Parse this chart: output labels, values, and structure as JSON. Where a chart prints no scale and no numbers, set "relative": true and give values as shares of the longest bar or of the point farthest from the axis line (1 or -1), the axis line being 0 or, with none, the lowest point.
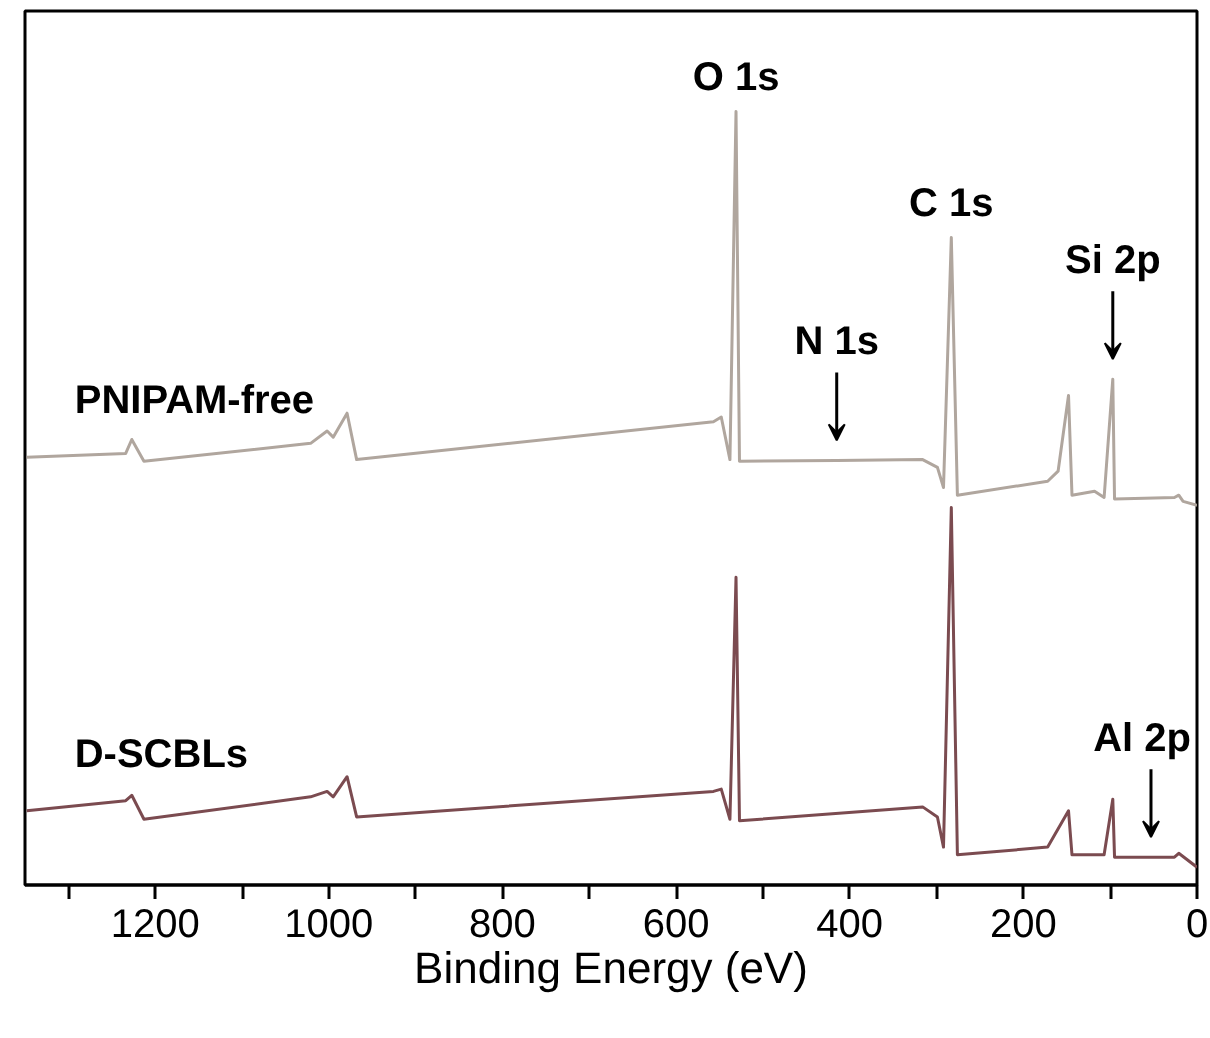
{
  "chart_data": {
    "type": "line",
    "relative": true,
    "xlabel": "Binding Energy (eV)",
    "xlim": [
      1350,
      0
    ],
    "xticks": [
      {
        "value": 1300,
        "label": null
      },
      1200,
      {
        "value": 1100,
        "label": null
      },
      1000,
      {
        "value": 900,
        "label": null
      },
      800,
      {
        "value": 700,
        "label": null
      },
      600,
      {
        "value": 500,
        "label": null
      },
      400,
      {
        "value": 300,
        "label": null
      },
      200,
      {
        "value": 100,
        "label": null
      },
      0
    ],
    "grid": false,
    "series": [
      {
        "name": "PNIPAM-free",
        "color": "#b0a69e",
        "x": [
          1348,
          1234,
          1227,
          1213,
          1021,
          1002,
          995,
          979,
          968,
          557,
          548,
          538,
          531,
          527,
          415,
          316,
          299,
          292,
          283,
          276,
          172,
          160,
          148,
          144,
          118,
          107,
          97,
          95,
          26,
          21,
          16,
          0
        ],
        "values": [
          0.553,
          0.558,
          0.576,
          0.548,
          0.571,
          0.587,
          0.579,
          0.61,
          0.55,
          0.599,
          0.605,
          0.55,
          1.0,
          0.548,
          0.549,
          0.55,
          0.54,
          0.514,
          0.837,
          0.504,
          0.522,
          0.535,
          0.633,
          0.504,
          0.509,
          0.501,
          0.654,
          0.499,
          0.501,
          0.504,
          0.496,
          0.491
        ]
      },
      {
        "name": "D-SCBLs",
        "color": "#7b4b50",
        "x": [
          1348,
          1234,
          1227,
          1213,
          1021,
          1002,
          995,
          979,
          968,
          557,
          548,
          538,
          531,
          527,
          316,
          299,
          292,
          283,
          276,
          172,
          148,
          144,
          107,
          97,
          95,
          53,
          26,
          21,
          0
        ],
        "values": [
          0.096,
          0.109,
          0.116,
          0.085,
          0.114,
          0.121,
          0.114,
          0.14,
          0.088,
          0.121,
          0.124,
          0.085,
          0.398,
          0.083,
          0.101,
          0.088,
          0.049,
          0.488,
          0.039,
          0.049,
          0.096,
          0.039,
          0.039,
          0.111,
          0.036,
          0.036,
          0.036,
          0.041,
          0.023
        ]
      }
    ],
    "annotations": [
      {
        "text": "O 1s",
        "x": 531,
        "y": 1.0
      },
      {
        "text": "C 1s",
        "x": 283,
        "y": 0.837
      },
      {
        "text": "N 1s",
        "x": 415,
        "y": 0.549
      },
      {
        "text": "Si 2p",
        "x": 97,
        "y": 0.654
      },
      {
        "text": "Al 2p",
        "x": 53,
        "y": 0.036
      }
    ]
  }
}
